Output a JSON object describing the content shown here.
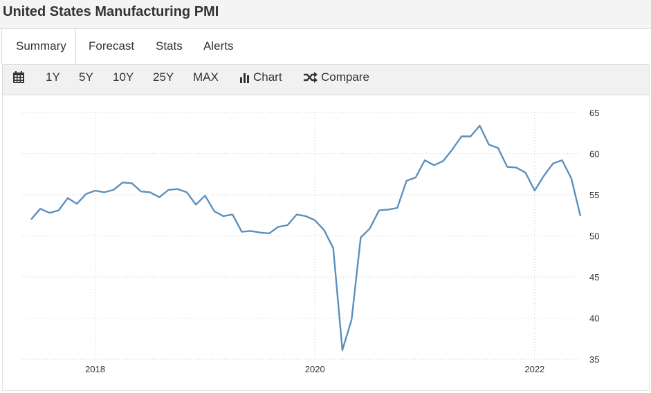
{
  "header": {
    "title": "United States Manufacturing PMI"
  },
  "tabs": [
    {
      "label": "Summary",
      "active": true
    },
    {
      "label": "Forecast",
      "active": false
    },
    {
      "label": "Stats",
      "active": false
    },
    {
      "label": "Alerts",
      "active": false
    }
  ],
  "toolbar": {
    "calendar_icon": "calendar-icon",
    "ranges": [
      "1Y",
      "5Y",
      "10Y",
      "25Y",
      "MAX"
    ],
    "chart_label": "Chart",
    "chart_icon": "bar-chart-icon",
    "compare_label": "Compare",
    "compare_icon": "shuffle-icon"
  },
  "chart_data": {
    "type": "line",
    "line_color": "#5b8fbd",
    "grid": true,
    "y_axis_side": "right",
    "ylim": [
      35,
      65
    ],
    "yticks": [
      35,
      40,
      45,
      50,
      55,
      60,
      65
    ],
    "x_ticks": [
      {
        "label": "2018",
        "date": "2018-01"
      },
      {
        "label": "2020",
        "date": "2020-01"
      },
      {
        "label": "2022",
        "date": "2022-01"
      }
    ],
    "x_start": "2017-06",
    "x_end": "2022-06",
    "series": [
      {
        "dates": [
          "2017-06",
          "2017-07",
          "2017-08",
          "2017-09",
          "2017-10",
          "2017-11",
          "2017-12",
          "2018-01",
          "2018-02",
          "2018-03",
          "2018-04",
          "2018-05",
          "2018-06",
          "2018-07",
          "2018-08",
          "2018-09",
          "2018-10",
          "2018-11",
          "2018-12",
          "2019-01",
          "2019-02",
          "2019-03",
          "2019-04",
          "2019-05",
          "2019-06",
          "2019-07",
          "2019-08",
          "2019-09",
          "2019-10",
          "2019-11",
          "2019-12",
          "2020-01",
          "2020-02",
          "2020-03",
          "2020-04",
          "2020-05",
          "2020-06",
          "2020-07",
          "2020-08",
          "2020-09",
          "2020-10",
          "2020-11",
          "2020-12",
          "2021-01",
          "2021-02",
          "2021-03",
          "2021-04",
          "2021-05",
          "2021-06",
          "2021-07",
          "2021-08",
          "2021-09",
          "2021-10",
          "2021-11",
          "2021-12",
          "2022-01",
          "2022-02",
          "2022-03",
          "2022-04",
          "2022-05",
          "2022-06"
        ],
        "values": [
          52.0,
          53.3,
          52.8,
          53.1,
          54.6,
          53.9,
          55.1,
          55.5,
          55.3,
          55.6,
          56.5,
          56.4,
          55.4,
          55.3,
          54.7,
          55.6,
          55.7,
          55.3,
          53.8,
          54.9,
          53.0,
          52.4,
          52.6,
          50.5,
          50.6,
          50.4,
          50.3,
          51.1,
          51.3,
          52.6,
          52.4,
          51.9,
          50.7,
          48.5,
          36.1,
          39.8,
          49.8,
          50.9,
          53.1,
          53.2,
          53.4,
          56.7,
          57.1,
          59.2,
          58.6,
          59.1,
          60.5,
          62.1,
          62.1,
          63.4,
          61.1,
          60.7,
          58.4,
          58.3,
          57.7,
          55.5,
          57.3,
          58.8,
          59.2,
          57.0,
          52.4
        ]
      }
    ]
  }
}
